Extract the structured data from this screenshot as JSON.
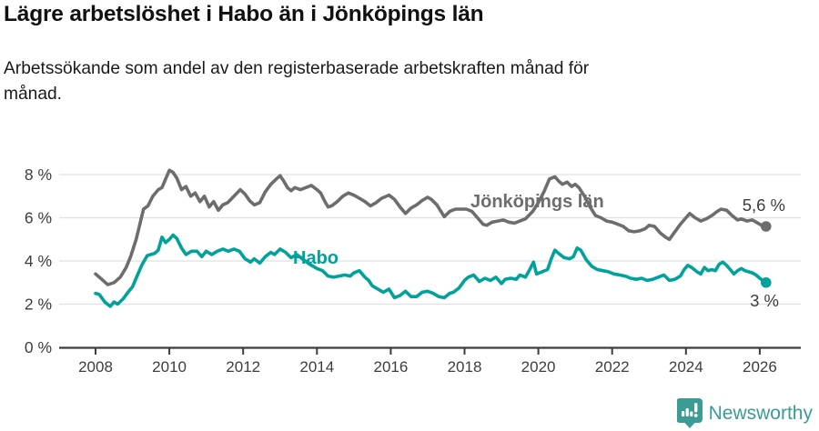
{
  "header": {
    "title": "Lägre arbetslöshet i Habo än i Jönköpings län",
    "subtitle": "Arbetssökande som andel av den registerbaserade arbetskraften månad för månad."
  },
  "chart_data": {
    "type": "line",
    "title": "Lägre arbetslöshet i Habo än i Jönköpings län",
    "subtitle": "Arbetssökande som andel av den registerbaserade arbetskraften månad för månad.",
    "unit": "%",
    "grid": true,
    "x_axis": {
      "ticks": [
        2008,
        2010,
        2012,
        2014,
        2016,
        2018,
        2020,
        2022,
        2024,
        2026
      ],
      "range": [
        2007.0,
        2027.1
      ]
    },
    "y_axis": {
      "ticks": [
        {
          "value": 0,
          "label": "0 %"
        },
        {
          "value": 2,
          "label": "2 %"
        },
        {
          "value": 4,
          "label": "4 %"
        },
        {
          "value": 6,
          "label": "6 %"
        },
        {
          "value": 8,
          "label": "8 %"
        }
      ],
      "range": [
        0,
        8.7
      ]
    },
    "series": [
      {
        "name": "Jönköpings län",
        "slug": "jonkopings-lan",
        "color": "#6d6d6d",
        "end_label": "5,6 %",
        "end_value": 5.6,
        "points": [
          [
            2008.0,
            3.4
          ],
          [
            2008.17,
            3.15
          ],
          [
            2008.33,
            2.9
          ],
          [
            2008.5,
            3.0
          ],
          [
            2008.67,
            3.25
          ],
          [
            2008.83,
            3.7
          ],
          [
            2008.95,
            4.2
          ],
          [
            2009.1,
            5.0
          ],
          [
            2009.2,
            5.7
          ],
          [
            2009.3,
            6.4
          ],
          [
            2009.42,
            6.55
          ],
          [
            2009.55,
            7.0
          ],
          [
            2009.7,
            7.3
          ],
          [
            2009.8,
            7.4
          ],
          [
            2009.9,
            7.8
          ],
          [
            2010.0,
            8.2
          ],
          [
            2010.1,
            8.1
          ],
          [
            2010.2,
            7.85
          ],
          [
            2010.33,
            7.3
          ],
          [
            2010.45,
            7.45
          ],
          [
            2010.58,
            7.0
          ],
          [
            2010.7,
            7.15
          ],
          [
            2010.83,
            6.75
          ],
          [
            2010.95,
            7.0
          ],
          [
            2011.08,
            6.5
          ],
          [
            2011.2,
            6.75
          ],
          [
            2011.33,
            6.35
          ],
          [
            2011.45,
            6.6
          ],
          [
            2011.58,
            6.7
          ],
          [
            2011.75,
            7.0
          ],
          [
            2011.92,
            7.3
          ],
          [
            2012.05,
            7.1
          ],
          [
            2012.17,
            6.8
          ],
          [
            2012.3,
            6.6
          ],
          [
            2012.45,
            6.7
          ],
          [
            2012.6,
            7.2
          ],
          [
            2012.75,
            7.55
          ],
          [
            2012.9,
            7.8
          ],
          [
            2013.0,
            7.95
          ],
          [
            2013.1,
            7.7
          ],
          [
            2013.2,
            7.4
          ],
          [
            2013.3,
            7.25
          ],
          [
            2013.4,
            7.4
          ],
          [
            2013.55,
            7.3
          ],
          [
            2013.7,
            7.4
          ],
          [
            2013.85,
            7.5
          ],
          [
            2014.0,
            7.3
          ],
          [
            2014.1,
            7.15
          ],
          [
            2014.2,
            6.8
          ],
          [
            2014.3,
            6.5
          ],
          [
            2014.4,
            6.55
          ],
          [
            2014.55,
            6.75
          ],
          [
            2014.7,
            7.0
          ],
          [
            2014.85,
            7.15
          ],
          [
            2015.0,
            7.05
          ],
          [
            2015.15,
            6.9
          ],
          [
            2015.3,
            6.75
          ],
          [
            2015.45,
            6.55
          ],
          [
            2015.6,
            6.7
          ],
          [
            2015.75,
            6.9
          ],
          [
            2015.95,
            7.05
          ],
          [
            2016.1,
            6.85
          ],
          [
            2016.25,
            6.5
          ],
          [
            2016.4,
            6.2
          ],
          [
            2016.55,
            6.45
          ],
          [
            2016.7,
            6.6
          ],
          [
            2016.85,
            6.8
          ],
          [
            2017.0,
            6.95
          ],
          [
            2017.1,
            6.85
          ],
          [
            2017.25,
            6.6
          ],
          [
            2017.45,
            6.05
          ],
          [
            2017.6,
            6.3
          ],
          [
            2017.75,
            6.4
          ],
          [
            2017.9,
            6.4
          ],
          [
            2018.05,
            6.4
          ],
          [
            2018.2,
            6.3
          ],
          [
            2018.35,
            6.0
          ],
          [
            2018.5,
            5.7
          ],
          [
            2018.6,
            5.65
          ],
          [
            2018.75,
            5.8
          ],
          [
            2018.9,
            5.85
          ],
          [
            2019.05,
            5.9
          ],
          [
            2019.2,
            5.8
          ],
          [
            2019.35,
            5.75
          ],
          [
            2019.5,
            5.85
          ],
          [
            2019.65,
            5.95
          ],
          [
            2019.85,
            6.3
          ],
          [
            2020.0,
            6.7
          ],
          [
            2020.15,
            7.2
          ],
          [
            2020.3,
            7.8
          ],
          [
            2020.45,
            7.9
          ],
          [
            2020.55,
            7.7
          ],
          [
            2020.65,
            7.55
          ],
          [
            2020.78,
            7.65
          ],
          [
            2020.9,
            7.45
          ],
          [
            2021.0,
            7.55
          ],
          [
            2021.1,
            7.4
          ],
          [
            2021.25,
            7.0
          ],
          [
            2021.4,
            6.5
          ],
          [
            2021.55,
            6.1
          ],
          [
            2021.7,
            6.0
          ],
          [
            2021.85,
            5.85
          ],
          [
            2022.0,
            5.8
          ],
          [
            2022.15,
            5.7
          ],
          [
            2022.3,
            5.6
          ],
          [
            2022.45,
            5.4
          ],
          [
            2022.6,
            5.35
          ],
          [
            2022.75,
            5.4
          ],
          [
            2022.9,
            5.5
          ],
          [
            2023.0,
            5.65
          ],
          [
            2023.15,
            5.6
          ],
          [
            2023.3,
            5.3
          ],
          [
            2023.45,
            5.1
          ],
          [
            2023.55,
            5.0
          ],
          [
            2023.7,
            5.35
          ],
          [
            2023.85,
            5.7
          ],
          [
            2024.0,
            6.0
          ],
          [
            2024.1,
            6.2
          ],
          [
            2024.25,
            6.0
          ],
          [
            2024.4,
            5.85
          ],
          [
            2024.55,
            5.95
          ],
          [
            2024.7,
            6.1
          ],
          [
            2024.85,
            6.3
          ],
          [
            2024.95,
            6.4
          ],
          [
            2025.1,
            6.35
          ],
          [
            2025.25,
            6.1
          ],
          [
            2025.4,
            5.9
          ],
          [
            2025.5,
            5.95
          ],
          [
            2025.65,
            5.85
          ],
          [
            2025.8,
            5.9
          ],
          [
            2025.95,
            5.75
          ],
          [
            2026.05,
            5.65
          ],
          [
            2026.17,
            5.6
          ]
        ]
      },
      {
        "name": "Habo",
        "slug": "habo",
        "color": "#00a29b",
        "end_label": "3 %",
        "end_value": 3.0,
        "points": [
          [
            2008.0,
            2.5
          ],
          [
            2008.1,
            2.45
          ],
          [
            2008.25,
            2.1
          ],
          [
            2008.4,
            1.9
          ],
          [
            2008.5,
            2.1
          ],
          [
            2008.6,
            2.0
          ],
          [
            2008.75,
            2.25
          ],
          [
            2008.9,
            2.6
          ],
          [
            2009.0,
            2.8
          ],
          [
            2009.1,
            3.2
          ],
          [
            2009.25,
            3.8
          ],
          [
            2009.4,
            4.25
          ],
          [
            2009.5,
            4.3
          ],
          [
            2009.6,
            4.35
          ],
          [
            2009.7,
            4.5
          ],
          [
            2009.8,
            5.1
          ],
          [
            2009.9,
            4.85
          ],
          [
            2010.0,
            5.0
          ],
          [
            2010.1,
            5.2
          ],
          [
            2010.2,
            5.05
          ],
          [
            2010.33,
            4.6
          ],
          [
            2010.45,
            4.3
          ],
          [
            2010.6,
            4.45
          ],
          [
            2010.75,
            4.45
          ],
          [
            2010.88,
            4.2
          ],
          [
            2011.0,
            4.45
          ],
          [
            2011.15,
            4.3
          ],
          [
            2011.3,
            4.45
          ],
          [
            2011.45,
            4.55
          ],
          [
            2011.6,
            4.45
          ],
          [
            2011.75,
            4.55
          ],
          [
            2011.9,
            4.45
          ],
          [
            2012.05,
            4.1
          ],
          [
            2012.2,
            3.95
          ],
          [
            2012.3,
            4.1
          ],
          [
            2012.45,
            3.9
          ],
          [
            2012.6,
            4.2
          ],
          [
            2012.75,
            4.4
          ],
          [
            2012.85,
            4.3
          ],
          [
            2013.0,
            4.55
          ],
          [
            2013.15,
            4.4
          ],
          [
            2013.3,
            4.15
          ],
          [
            2013.45,
            4.3
          ],
          [
            2013.6,
            4.1
          ],
          [
            2013.8,
            3.85
          ],
          [
            2014.0,
            3.65
          ],
          [
            2014.15,
            3.55
          ],
          [
            2014.3,
            3.3
          ],
          [
            2014.45,
            3.25
          ],
          [
            2014.6,
            3.3
          ],
          [
            2014.75,
            3.35
          ],
          [
            2014.9,
            3.3
          ],
          [
            2015.0,
            3.45
          ],
          [
            2015.15,
            3.55
          ],
          [
            2015.3,
            3.25
          ],
          [
            2015.4,
            3.1
          ],
          [
            2015.5,
            2.85
          ],
          [
            2015.65,
            2.7
          ],
          [
            2015.8,
            2.55
          ],
          [
            2015.95,
            2.7
          ],
          [
            2016.1,
            2.3
          ],
          [
            2016.25,
            2.4
          ],
          [
            2016.4,
            2.6
          ],
          [
            2016.55,
            2.35
          ],
          [
            2016.7,
            2.35
          ],
          [
            2016.85,
            2.55
          ],
          [
            2017.0,
            2.6
          ],
          [
            2017.15,
            2.5
          ],
          [
            2017.3,
            2.35
          ],
          [
            2017.45,
            2.3
          ],
          [
            2017.6,
            2.5
          ],
          [
            2017.7,
            2.55
          ],
          [
            2017.85,
            2.75
          ],
          [
            2018.0,
            3.1
          ],
          [
            2018.1,
            3.25
          ],
          [
            2018.25,
            3.35
          ],
          [
            2018.4,
            3.05
          ],
          [
            2018.55,
            3.2
          ],
          [
            2018.7,
            3.1
          ],
          [
            2018.85,
            3.25
          ],
          [
            2019.0,
            2.95
          ],
          [
            2019.1,
            3.15
          ],
          [
            2019.25,
            3.2
          ],
          [
            2019.4,
            3.15
          ],
          [
            2019.5,
            3.35
          ],
          [
            2019.65,
            3.25
          ],
          [
            2019.75,
            3.55
          ],
          [
            2019.87,
            3.95
          ],
          [
            2019.95,
            3.4
          ],
          [
            2020.1,
            3.5
          ],
          [
            2020.25,
            3.6
          ],
          [
            2020.35,
            4.1
          ],
          [
            2020.45,
            4.5
          ],
          [
            2020.55,
            4.35
          ],
          [
            2020.7,
            4.15
          ],
          [
            2020.85,
            4.1
          ],
          [
            2020.95,
            4.2
          ],
          [
            2021.05,
            4.6
          ],
          [
            2021.15,
            4.5
          ],
          [
            2021.3,
            4.05
          ],
          [
            2021.45,
            3.75
          ],
          [
            2021.6,
            3.6
          ],
          [
            2021.75,
            3.55
          ],
          [
            2021.9,
            3.5
          ],
          [
            2022.05,
            3.4
          ],
          [
            2022.2,
            3.35
          ],
          [
            2022.35,
            3.3
          ],
          [
            2022.5,
            3.2
          ],
          [
            2022.65,
            3.15
          ],
          [
            2022.8,
            3.2
          ],
          [
            2022.95,
            3.1
          ],
          [
            2023.1,
            3.15
          ],
          [
            2023.25,
            3.25
          ],
          [
            2023.4,
            3.35
          ],
          [
            2023.55,
            3.1
          ],
          [
            2023.7,
            3.15
          ],
          [
            2023.85,
            3.3
          ],
          [
            2023.95,
            3.6
          ],
          [
            2024.05,
            3.8
          ],
          [
            2024.15,
            3.7
          ],
          [
            2024.3,
            3.5
          ],
          [
            2024.4,
            3.4
          ],
          [
            2024.5,
            3.7
          ],
          [
            2024.6,
            3.55
          ],
          [
            2024.7,
            3.6
          ],
          [
            2024.8,
            3.55
          ],
          [
            2024.9,
            3.85
          ],
          [
            2025.0,
            3.95
          ],
          [
            2025.1,
            3.8
          ],
          [
            2025.2,
            3.6
          ],
          [
            2025.3,
            3.4
          ],
          [
            2025.4,
            3.55
          ],
          [
            2025.5,
            3.65
          ],
          [
            2025.6,
            3.55
          ],
          [
            2025.7,
            3.5
          ],
          [
            2025.8,
            3.45
          ],
          [
            2025.9,
            3.35
          ],
          [
            2026.0,
            3.2
          ],
          [
            2026.17,
            3.0
          ]
        ]
      }
    ],
    "legend_position": "inline-labels"
  },
  "colors": {
    "series_jonkopings_lan": "#6d6d6d",
    "series_habo": "#00a29b",
    "gridline": "#e0e0e0",
    "axis": "#3d3d3d",
    "brand_teal": "#3b9c95"
  },
  "footer": {
    "brand": "Newsworthy",
    "logo_icon": "newsworthy-chart-pin-icon"
  }
}
